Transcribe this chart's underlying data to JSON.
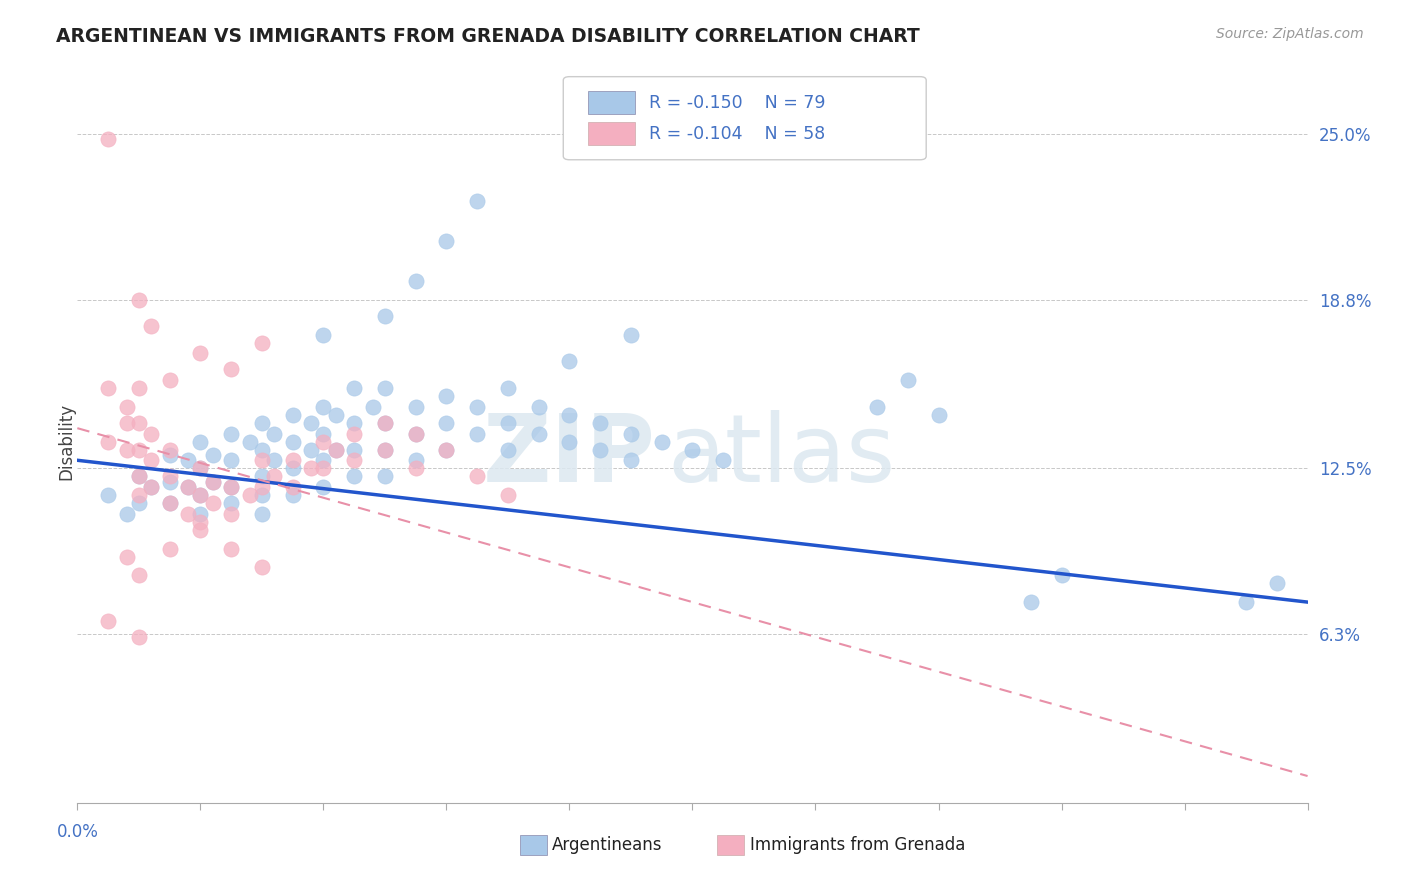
{
  "title": "ARGENTINEAN VS IMMIGRANTS FROM GRENADA DISABILITY CORRELATION CHART",
  "source": "Source: ZipAtlas.com",
  "ylabel": "Disability",
  "ylabel_right_ticks": [
    "25.0%",
    "18.8%",
    "12.5%",
    "6.3%"
  ],
  "ylabel_right_vals": [
    0.25,
    0.188,
    0.125,
    0.063
  ],
  "xmin": 0.0,
  "xmax": 0.2,
  "ymin": 0.0,
  "ymax": 0.27,
  "blue_color": "#a8c8e8",
  "pink_color": "#f4afc0",
  "line_blue": "#2255cc",
  "line_pink": "#e890a8",
  "watermark_zip": "ZIP",
  "watermark_atlas": "atlas",
  "blue_scatter": [
    [
      0.005,
      0.115
    ],
    [
      0.008,
      0.108
    ],
    [
      0.01,
      0.122
    ],
    [
      0.01,
      0.112
    ],
    [
      0.012,
      0.118
    ],
    [
      0.015,
      0.13
    ],
    [
      0.015,
      0.12
    ],
    [
      0.015,
      0.112
    ],
    [
      0.018,
      0.128
    ],
    [
      0.018,
      0.118
    ],
    [
      0.02,
      0.135
    ],
    [
      0.02,
      0.125
    ],
    [
      0.02,
      0.115
    ],
    [
      0.02,
      0.108
    ],
    [
      0.022,
      0.13
    ],
    [
      0.022,
      0.12
    ],
    [
      0.025,
      0.138
    ],
    [
      0.025,
      0.128
    ],
    [
      0.025,
      0.118
    ],
    [
      0.025,
      0.112
    ],
    [
      0.028,
      0.135
    ],
    [
      0.03,
      0.142
    ],
    [
      0.03,
      0.132
    ],
    [
      0.03,
      0.122
    ],
    [
      0.03,
      0.115
    ],
    [
      0.03,
      0.108
    ],
    [
      0.032,
      0.138
    ],
    [
      0.032,
      0.128
    ],
    [
      0.035,
      0.145
    ],
    [
      0.035,
      0.135
    ],
    [
      0.035,
      0.125
    ],
    [
      0.035,
      0.115
    ],
    [
      0.038,
      0.142
    ],
    [
      0.038,
      0.132
    ],
    [
      0.04,
      0.148
    ],
    [
      0.04,
      0.138
    ],
    [
      0.04,
      0.128
    ],
    [
      0.04,
      0.118
    ],
    [
      0.042,
      0.145
    ],
    [
      0.042,
      0.132
    ],
    [
      0.045,
      0.155
    ],
    [
      0.045,
      0.142
    ],
    [
      0.045,
      0.132
    ],
    [
      0.045,
      0.122
    ],
    [
      0.048,
      0.148
    ],
    [
      0.05,
      0.155
    ],
    [
      0.05,
      0.142
    ],
    [
      0.05,
      0.132
    ],
    [
      0.05,
      0.122
    ],
    [
      0.055,
      0.148
    ],
    [
      0.055,
      0.138
    ],
    [
      0.055,
      0.128
    ],
    [
      0.06,
      0.152
    ],
    [
      0.06,
      0.142
    ],
    [
      0.06,
      0.132
    ],
    [
      0.065,
      0.148
    ],
    [
      0.065,
      0.138
    ],
    [
      0.07,
      0.155
    ],
    [
      0.07,
      0.142
    ],
    [
      0.07,
      0.132
    ],
    [
      0.075,
      0.148
    ],
    [
      0.075,
      0.138
    ],
    [
      0.08,
      0.145
    ],
    [
      0.08,
      0.135
    ],
    [
      0.085,
      0.142
    ],
    [
      0.085,
      0.132
    ],
    [
      0.09,
      0.138
    ],
    [
      0.09,
      0.128
    ],
    [
      0.095,
      0.135
    ],
    [
      0.1,
      0.132
    ],
    [
      0.105,
      0.128
    ],
    [
      0.04,
      0.175
    ],
    [
      0.05,
      0.182
    ],
    [
      0.055,
      0.195
    ],
    [
      0.06,
      0.21
    ],
    [
      0.065,
      0.225
    ],
    [
      0.08,
      0.165
    ],
    [
      0.09,
      0.175
    ],
    [
      0.13,
      0.148
    ],
    [
      0.135,
      0.158
    ],
    [
      0.14,
      0.145
    ],
    [
      0.155,
      0.075
    ],
    [
      0.16,
      0.085
    ],
    [
      0.19,
      0.075
    ],
    [
      0.195,
      0.082
    ]
  ],
  "pink_scatter": [
    [
      0.005,
      0.248
    ],
    [
      0.01,
      0.188
    ],
    [
      0.012,
      0.178
    ],
    [
      0.005,
      0.155
    ],
    [
      0.008,
      0.148
    ],
    [
      0.01,
      0.155
    ],
    [
      0.005,
      0.135
    ],
    [
      0.008,
      0.142
    ],
    [
      0.01,
      0.142
    ],
    [
      0.008,
      0.132
    ],
    [
      0.01,
      0.132
    ],
    [
      0.012,
      0.138
    ],
    [
      0.01,
      0.122
    ],
    [
      0.012,
      0.128
    ],
    [
      0.015,
      0.132
    ],
    [
      0.01,
      0.115
    ],
    [
      0.012,
      0.118
    ],
    [
      0.015,
      0.122
    ],
    [
      0.015,
      0.112
    ],
    [
      0.018,
      0.118
    ],
    [
      0.02,
      0.125
    ],
    [
      0.018,
      0.108
    ],
    [
      0.02,
      0.115
    ],
    [
      0.022,
      0.12
    ],
    [
      0.02,
      0.105
    ],
    [
      0.022,
      0.112
    ],
    [
      0.025,
      0.118
    ],
    [
      0.025,
      0.108
    ],
    [
      0.028,
      0.115
    ],
    [
      0.03,
      0.128
    ],
    [
      0.03,
      0.118
    ],
    [
      0.032,
      0.122
    ],
    [
      0.035,
      0.128
    ],
    [
      0.035,
      0.118
    ],
    [
      0.038,
      0.125
    ],
    [
      0.04,
      0.135
    ],
    [
      0.04,
      0.125
    ],
    [
      0.042,
      0.132
    ],
    [
      0.045,
      0.138
    ],
    [
      0.045,
      0.128
    ],
    [
      0.05,
      0.142
    ],
    [
      0.05,
      0.132
    ],
    [
      0.055,
      0.138
    ],
    [
      0.055,
      0.125
    ],
    [
      0.06,
      0.132
    ],
    [
      0.065,
      0.122
    ],
    [
      0.07,
      0.115
    ],
    [
      0.008,
      0.092
    ],
    [
      0.01,
      0.085
    ],
    [
      0.015,
      0.095
    ],
    [
      0.02,
      0.102
    ],
    [
      0.025,
      0.095
    ],
    [
      0.03,
      0.088
    ],
    [
      0.005,
      0.068
    ],
    [
      0.01,
      0.062
    ],
    [
      0.015,
      0.158
    ],
    [
      0.02,
      0.168
    ],
    [
      0.025,
      0.162
    ],
    [
      0.03,
      0.172
    ]
  ]
}
